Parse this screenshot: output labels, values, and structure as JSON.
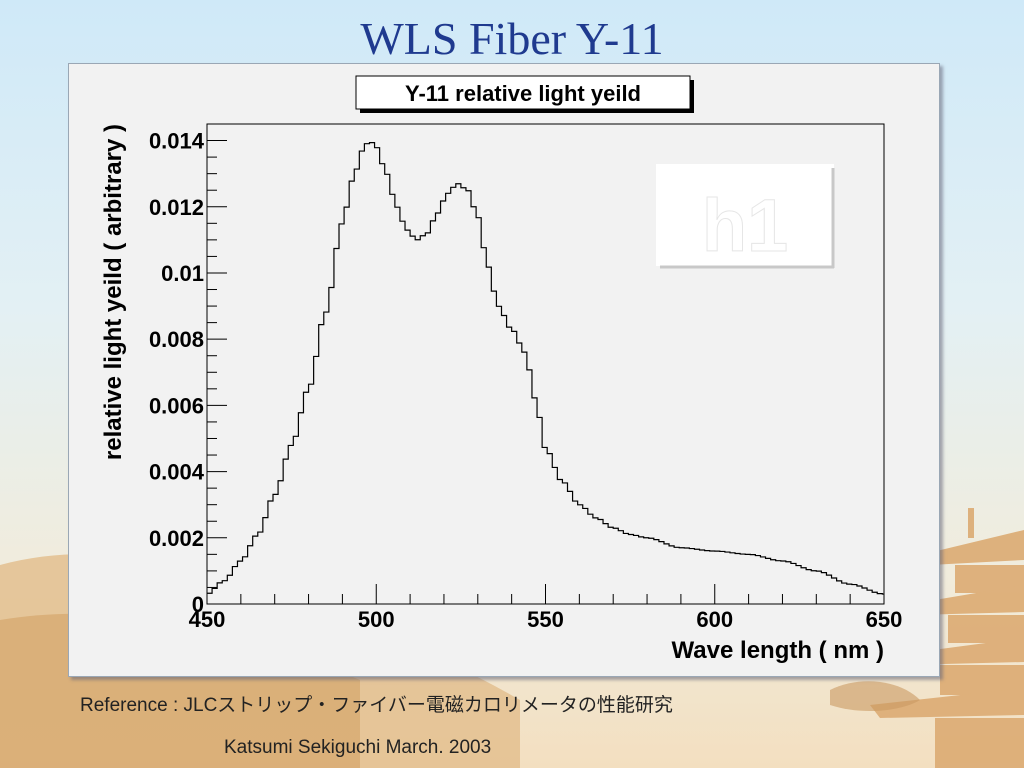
{
  "slide": {
    "title": "WLS Fiber Y-11",
    "reference": "Reference : JLCストリップ・ファイバー電磁カロリメータの性能研究",
    "author": "Katsumi Sekiguchi March. 2003"
  },
  "chart_data": {
    "type": "line",
    "title": "Y-11 relative light yeild",
    "xlabel": "Wave length ( nm )",
    "ylabel": "relative light yeild ( arbitrary )",
    "stats_box": "h1",
    "xlim": [
      450,
      650
    ],
    "ylim": [
      0,
      0.0145
    ],
    "x_ticks": [
      450,
      500,
      550,
      600,
      650
    ],
    "x_tick_labels": [
      "450",
      "500",
      "550",
      "600",
      "650"
    ],
    "y_ticks": [
      0,
      0.002,
      0.004,
      0.006,
      0.008,
      0.01,
      0.012,
      0.014
    ],
    "y_tick_labels": [
      "0",
      "0.002",
      "0.004",
      "0.006",
      "0.008",
      "0.01",
      "0.012",
      "0.014"
    ],
    "grid": false,
    "line_style": "histogram-step",
    "line_color": "#000000",
    "series": [
      {
        "x": [
          450,
          455,
          460,
          465,
          470,
          475,
          480,
          485,
          490,
          493,
          496,
          498,
          500,
          503,
          506,
          509,
          512,
          515,
          518,
          521,
          524,
          527,
          530,
          533,
          536,
          540,
          544,
          547,
          550,
          555,
          560,
          565,
          570,
          575,
          580,
          590,
          600,
          610,
          620,
          630,
          640,
          650
        ],
        "y": [
          0.0003,
          0.0007,
          0.0013,
          0.0021,
          0.0033,
          0.0048,
          0.0065,
          0.0088,
          0.0115,
          0.0128,
          0.0137,
          0.014,
          0.0138,
          0.013,
          0.012,
          0.0113,
          0.011,
          0.0112,
          0.0118,
          0.0124,
          0.0127,
          0.0125,
          0.0117,
          0.0102,
          0.009,
          0.0083,
          0.0076,
          0.0062,
          0.0047,
          0.0037,
          0.003,
          0.0026,
          0.0023,
          0.0021,
          0.002,
          0.0017,
          0.0016,
          0.0015,
          0.0013,
          0.001,
          0.0006,
          0.0003
        ]
      }
    ]
  }
}
